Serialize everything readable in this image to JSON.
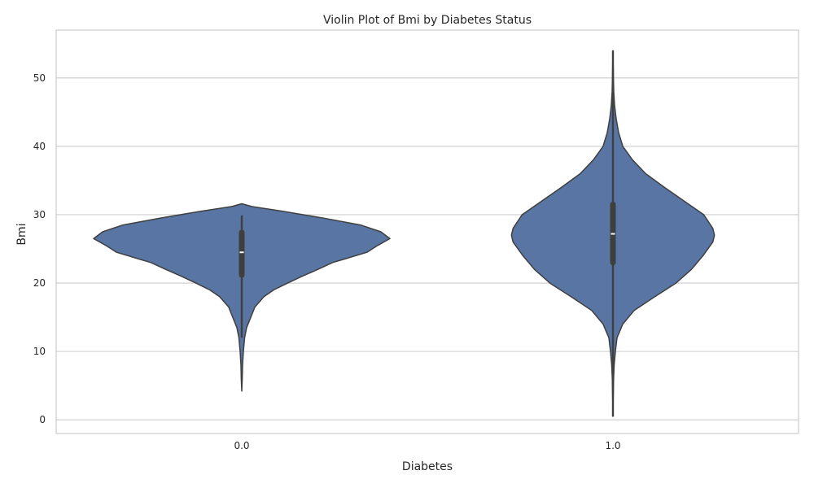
{
  "chart_data": {
    "type": "violin",
    "title": "Violin Plot of Bmi by Diabetes Status",
    "xlabel": "Diabetes",
    "ylabel": "Bmi",
    "ylim": [
      -2,
      57
    ],
    "y_ticks": [
      0,
      10,
      20,
      30,
      40,
      50
    ],
    "grid": "horizontal",
    "categories": [
      "0.0",
      "1.0"
    ],
    "color": "#5875a4",
    "edge_color": "#3f3f3f",
    "violins": [
      {
        "category": "0.0",
        "min": 4.2,
        "q1": 21.2,
        "median": 24.5,
        "q3": 27.4,
        "whisker_low": 12.0,
        "whisker_high": 29.9,
        "max": 31.6,
        "profile": [
          [
            4.2,
            0.0
          ],
          [
            6.0,
            0.6
          ],
          [
            8.0,
            1.0
          ],
          [
            10.0,
            2.0
          ],
          [
            12.0,
            3.5
          ],
          [
            13.5,
            6.0
          ],
          [
            15.0,
            11.0
          ],
          [
            16.5,
            16.0
          ],
          [
            18.0,
            27.0
          ],
          [
            19.0,
            39.0
          ],
          [
            20.0,
            56.0
          ],
          [
            21.0,
            74.0
          ],
          [
            22.0,
            93.0
          ],
          [
            23.0,
            111.0
          ],
          [
            23.5,
            125.0
          ],
          [
            24.5,
            153.0
          ],
          [
            25.5,
            166.0
          ],
          [
            26.5,
            181.0
          ],
          [
            27.5,
            170.0
          ],
          [
            28.5,
            145.0
          ],
          [
            29.5,
            100.0
          ],
          [
            30.5,
            50.0
          ],
          [
            31.2,
            12.0
          ],
          [
            31.6,
            0.0
          ]
        ]
      },
      {
        "category": "1.0",
        "min": 0.5,
        "q1": 23.0,
        "median": 27.2,
        "q3": 31.5,
        "whisker_low": 0.5,
        "whisker_high": 54.0,
        "max": 54.0,
        "profile": [
          [
            0.5,
            0.0
          ],
          [
            3.0,
            0.3
          ],
          [
            6.0,
            0.8
          ],
          [
            8.0,
            1.5
          ],
          [
            10.0,
            3.0
          ],
          [
            12.0,
            5.0
          ],
          [
            14.0,
            12.0
          ],
          [
            16.0,
            26.0
          ],
          [
            18.0,
            51.0
          ],
          [
            20.0,
            77.0
          ],
          [
            22.0,
            96.0
          ],
          [
            24.0,
            110.0
          ],
          [
            26.0,
            122.0
          ],
          [
            27.0,
            124.0
          ],
          [
            28.0,
            122.0
          ],
          [
            30.0,
            111.0
          ],
          [
            32.0,
            87.0
          ],
          [
            34.0,
            63.0
          ],
          [
            36.0,
            40.0
          ],
          [
            38.0,
            24.0
          ],
          [
            40.0,
            12.0
          ],
          [
            42.0,
            7.0
          ],
          [
            44.0,
            4.0
          ],
          [
            46.0,
            2.0
          ],
          [
            48.0,
            1.0
          ],
          [
            50.0,
            0.6
          ],
          [
            54.0,
            0.0
          ]
        ]
      }
    ]
  }
}
